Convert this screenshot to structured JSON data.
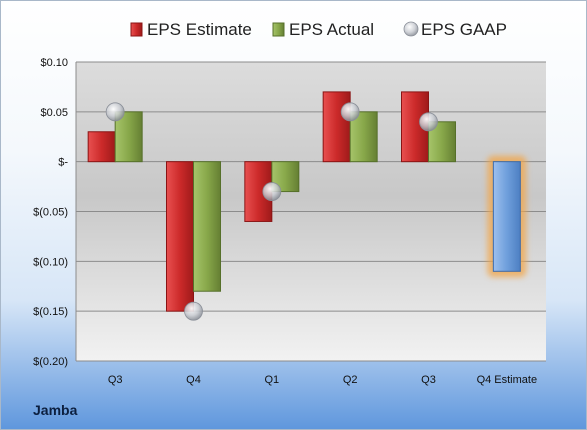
{
  "company": "Jamba",
  "chart_data": {
    "type": "bar",
    "categories": [
      "Q3",
      "Q4",
      "Q1",
      "Q2",
      "Q3",
      "Q4 Estimate"
    ],
    "ylim": [
      -0.2,
      0.1
    ],
    "yticks": [
      0.1,
      0.05,
      0,
      -0.05,
      -0.1,
      -0.15,
      -0.2
    ],
    "ytick_labels": [
      "$0.10",
      "$0.05",
      "$-",
      "$(0.05)",
      "$(0.10)",
      "$(0.15)",
      "$(0.20)"
    ],
    "grid": true,
    "legend_position": "top",
    "series": [
      {
        "name": "EPS Estimate",
        "type": "bar",
        "color": "#cc2a2a",
        "values": [
          0.03,
          -0.15,
          -0.06,
          0.07,
          0.07,
          null
        ]
      },
      {
        "name": "EPS Actual",
        "type": "bar",
        "color": "#88a84a",
        "values": [
          0.05,
          -0.13,
          -0.03,
          0.05,
          0.04,
          null
        ]
      },
      {
        "name": "EPS GAAP",
        "type": "marker",
        "color": "#b8bcc4",
        "values": [
          0.05,
          -0.15,
          -0.03,
          0.05,
          0.04,
          null
        ]
      }
    ],
    "estimate": {
      "category": "Q4 Estimate",
      "value": -0.11,
      "color": "#6f9fdc",
      "glow": "#f2a64a"
    }
  }
}
